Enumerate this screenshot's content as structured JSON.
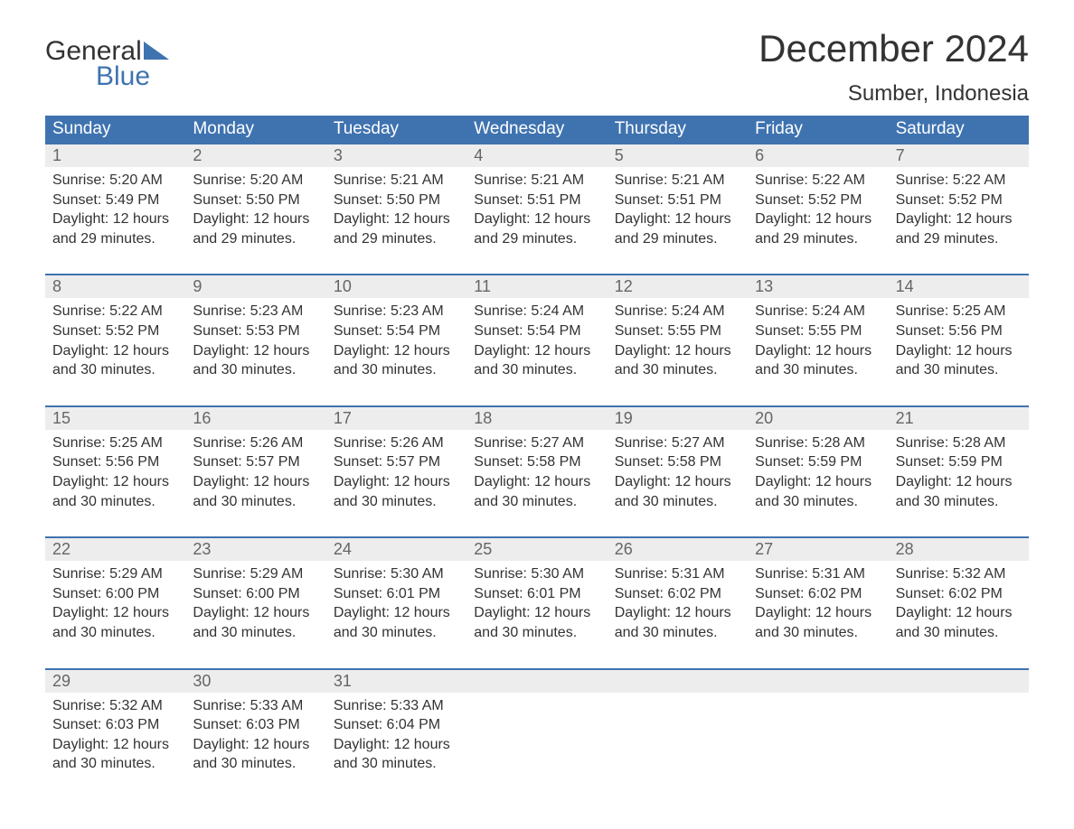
{
  "logo": {
    "line1": "General",
    "line2": "Blue",
    "brand_color": "#3f73b0"
  },
  "header": {
    "title": "December 2024",
    "location": "Sumber, Indonesia"
  },
  "colors": {
    "header_bg": "#3f73b0",
    "header_text": "#ffffff",
    "daynum_bg": "#ededed",
    "daynum_text": "#666666",
    "row_border": "#3f73b0",
    "body_text": "#333333",
    "background": "#ffffff"
  },
  "weekdays": [
    "Sunday",
    "Monday",
    "Tuesday",
    "Wednesday",
    "Thursday",
    "Friday",
    "Saturday"
  ],
  "weeks": [
    [
      {
        "n": "1",
        "sunrise": "Sunrise: 5:20 AM",
        "sunset": "Sunset: 5:49 PM",
        "d1": "Daylight: 12 hours",
        "d2": "and 29 minutes."
      },
      {
        "n": "2",
        "sunrise": "Sunrise: 5:20 AM",
        "sunset": "Sunset: 5:50 PM",
        "d1": "Daylight: 12 hours",
        "d2": "and 29 minutes."
      },
      {
        "n": "3",
        "sunrise": "Sunrise: 5:21 AM",
        "sunset": "Sunset: 5:50 PM",
        "d1": "Daylight: 12 hours",
        "d2": "and 29 minutes."
      },
      {
        "n": "4",
        "sunrise": "Sunrise: 5:21 AM",
        "sunset": "Sunset: 5:51 PM",
        "d1": "Daylight: 12 hours",
        "d2": "and 29 minutes."
      },
      {
        "n": "5",
        "sunrise": "Sunrise: 5:21 AM",
        "sunset": "Sunset: 5:51 PM",
        "d1": "Daylight: 12 hours",
        "d2": "and 29 minutes."
      },
      {
        "n": "6",
        "sunrise": "Sunrise: 5:22 AM",
        "sunset": "Sunset: 5:52 PM",
        "d1": "Daylight: 12 hours",
        "d2": "and 29 minutes."
      },
      {
        "n": "7",
        "sunrise": "Sunrise: 5:22 AM",
        "sunset": "Sunset: 5:52 PM",
        "d1": "Daylight: 12 hours",
        "d2": "and 29 minutes."
      }
    ],
    [
      {
        "n": "8",
        "sunrise": "Sunrise: 5:22 AM",
        "sunset": "Sunset: 5:52 PM",
        "d1": "Daylight: 12 hours",
        "d2": "and 30 minutes."
      },
      {
        "n": "9",
        "sunrise": "Sunrise: 5:23 AM",
        "sunset": "Sunset: 5:53 PM",
        "d1": "Daylight: 12 hours",
        "d2": "and 30 minutes."
      },
      {
        "n": "10",
        "sunrise": "Sunrise: 5:23 AM",
        "sunset": "Sunset: 5:54 PM",
        "d1": "Daylight: 12 hours",
        "d2": "and 30 minutes."
      },
      {
        "n": "11",
        "sunrise": "Sunrise: 5:24 AM",
        "sunset": "Sunset: 5:54 PM",
        "d1": "Daylight: 12 hours",
        "d2": "and 30 minutes."
      },
      {
        "n": "12",
        "sunrise": "Sunrise: 5:24 AM",
        "sunset": "Sunset: 5:55 PM",
        "d1": "Daylight: 12 hours",
        "d2": "and 30 minutes."
      },
      {
        "n": "13",
        "sunrise": "Sunrise: 5:24 AM",
        "sunset": "Sunset: 5:55 PM",
        "d1": "Daylight: 12 hours",
        "d2": "and 30 minutes."
      },
      {
        "n": "14",
        "sunrise": "Sunrise: 5:25 AM",
        "sunset": "Sunset: 5:56 PM",
        "d1": "Daylight: 12 hours",
        "d2": "and 30 minutes."
      }
    ],
    [
      {
        "n": "15",
        "sunrise": "Sunrise: 5:25 AM",
        "sunset": "Sunset: 5:56 PM",
        "d1": "Daylight: 12 hours",
        "d2": "and 30 minutes."
      },
      {
        "n": "16",
        "sunrise": "Sunrise: 5:26 AM",
        "sunset": "Sunset: 5:57 PM",
        "d1": "Daylight: 12 hours",
        "d2": "and 30 minutes."
      },
      {
        "n": "17",
        "sunrise": "Sunrise: 5:26 AM",
        "sunset": "Sunset: 5:57 PM",
        "d1": "Daylight: 12 hours",
        "d2": "and 30 minutes."
      },
      {
        "n": "18",
        "sunrise": "Sunrise: 5:27 AM",
        "sunset": "Sunset: 5:58 PM",
        "d1": "Daylight: 12 hours",
        "d2": "and 30 minutes."
      },
      {
        "n": "19",
        "sunrise": "Sunrise: 5:27 AM",
        "sunset": "Sunset: 5:58 PM",
        "d1": "Daylight: 12 hours",
        "d2": "and 30 minutes."
      },
      {
        "n": "20",
        "sunrise": "Sunrise: 5:28 AM",
        "sunset": "Sunset: 5:59 PM",
        "d1": "Daylight: 12 hours",
        "d2": "and 30 minutes."
      },
      {
        "n": "21",
        "sunrise": "Sunrise: 5:28 AM",
        "sunset": "Sunset: 5:59 PM",
        "d1": "Daylight: 12 hours",
        "d2": "and 30 minutes."
      }
    ],
    [
      {
        "n": "22",
        "sunrise": "Sunrise: 5:29 AM",
        "sunset": "Sunset: 6:00 PM",
        "d1": "Daylight: 12 hours",
        "d2": "and 30 minutes."
      },
      {
        "n": "23",
        "sunrise": "Sunrise: 5:29 AM",
        "sunset": "Sunset: 6:00 PM",
        "d1": "Daylight: 12 hours",
        "d2": "and 30 minutes."
      },
      {
        "n": "24",
        "sunrise": "Sunrise: 5:30 AM",
        "sunset": "Sunset: 6:01 PM",
        "d1": "Daylight: 12 hours",
        "d2": "and 30 minutes."
      },
      {
        "n": "25",
        "sunrise": "Sunrise: 5:30 AM",
        "sunset": "Sunset: 6:01 PM",
        "d1": "Daylight: 12 hours",
        "d2": "and 30 minutes."
      },
      {
        "n": "26",
        "sunrise": "Sunrise: 5:31 AM",
        "sunset": "Sunset: 6:02 PM",
        "d1": "Daylight: 12 hours",
        "d2": "and 30 minutes."
      },
      {
        "n": "27",
        "sunrise": "Sunrise: 5:31 AM",
        "sunset": "Sunset: 6:02 PM",
        "d1": "Daylight: 12 hours",
        "d2": "and 30 minutes."
      },
      {
        "n": "28",
        "sunrise": "Sunrise: 5:32 AM",
        "sunset": "Sunset: 6:02 PM",
        "d1": "Daylight: 12 hours",
        "d2": "and 30 minutes."
      }
    ],
    [
      {
        "n": "29",
        "sunrise": "Sunrise: 5:32 AM",
        "sunset": "Sunset: 6:03 PM",
        "d1": "Daylight: 12 hours",
        "d2": "and 30 minutes."
      },
      {
        "n": "30",
        "sunrise": "Sunrise: 5:33 AM",
        "sunset": "Sunset: 6:03 PM",
        "d1": "Daylight: 12 hours",
        "d2": "and 30 minutes."
      },
      {
        "n": "31",
        "sunrise": "Sunrise: 5:33 AM",
        "sunset": "Sunset: 6:04 PM",
        "d1": "Daylight: 12 hours",
        "d2": "and 30 minutes."
      },
      null,
      null,
      null,
      null
    ]
  ]
}
